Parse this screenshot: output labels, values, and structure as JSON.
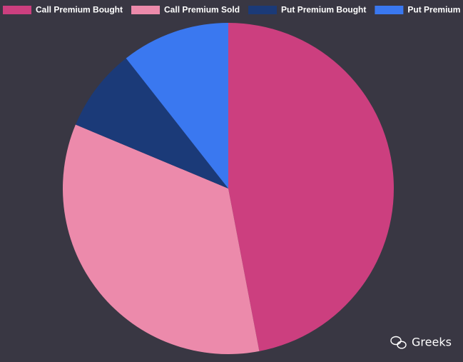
{
  "chart_data": {
    "type": "pie",
    "categories": [
      "Call Premium Bought",
      "Call Premium Sold",
      "Put Premium Bought",
      "Put Premium Sold"
    ],
    "values": [
      47,
      34.3,
      8.1,
      10.6
    ],
    "colors": [
      "#cc3f7f",
      "#ec8aab",
      "#1b3a78",
      "#3a78f0"
    ],
    "watermark": "Greeks"
  }
}
